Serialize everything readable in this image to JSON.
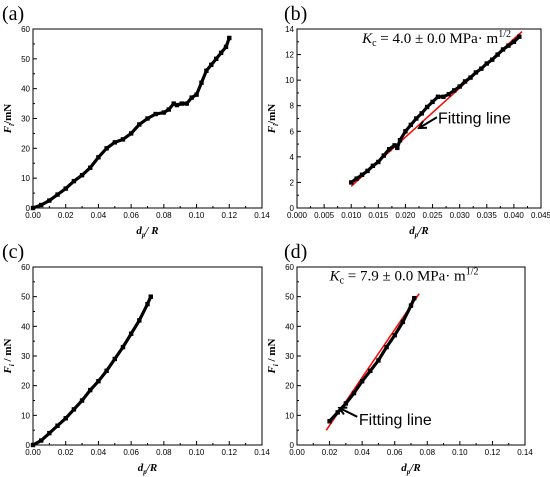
{
  "chart_data": [
    {
      "id": "a",
      "type": "scatter",
      "panel_label": "(a)",
      "xlabel": {
        "main": "d",
        "sub": "p",
        "tail": "/ R"
      },
      "ylabel": {
        "main": "F",
        "sub": "i",
        "tail": "/mN"
      },
      "xlim": [
        0,
        0.14
      ],
      "ylim": [
        0,
        60
      ],
      "xticks": [
        "0.00",
        "0.02",
        "0.04",
        "0.06",
        "0.08",
        "0.10",
        "0.12",
        "0.14"
      ],
      "yticks": [
        "0",
        "10",
        "20",
        "30",
        "40",
        "50",
        "60"
      ],
      "marker_color": "#000000",
      "series": [
        {
          "x": [
            0.0,
            0.005,
            0.01,
            0.015,
            0.02,
            0.025,
            0.03,
            0.035,
            0.04,
            0.045,
            0.05,
            0.055,
            0.06,
            0.065,
            0.07,
            0.075,
            0.08,
            0.083,
            0.086,
            0.088,
            0.091,
            0.094,
            0.097,
            0.1,
            0.103,
            0.106,
            0.109,
            0.112,
            0.115,
            0.118,
            0.12
          ],
          "y": [
            0.0,
            1.0,
            2.5,
            4.5,
            6.5,
            9.0,
            11.0,
            13.5,
            17.0,
            20.0,
            22.0,
            23.0,
            25.0,
            28.0,
            30.0,
            31.5,
            32.0,
            33.0,
            35.0,
            34.5,
            35.0,
            35.0,
            37.0,
            38.0,
            42.0,
            46.0,
            48.0,
            50.0,
            52.0,
            54.0,
            57.0
          ]
        }
      ]
    },
    {
      "id": "b",
      "type": "scatter",
      "panel_label": "(b)",
      "xlabel": {
        "main": "d",
        "sub": "p",
        "tail": "/R"
      },
      "ylabel": {
        "main": "F",
        "sub": "i",
        "tail": "/mN"
      },
      "xlim": [
        0,
        0.045
      ],
      "ylim": [
        0,
        14
      ],
      "xticks": [
        "0.000",
        "0.005",
        "0.010",
        "0.015",
        "0.020",
        "0.025",
        "0.030",
        "0.035",
        "0.040",
        "0.045"
      ],
      "yticks": [
        "0",
        "2",
        "4",
        "6",
        "8",
        "10",
        "12",
        "14"
      ],
      "marker_color": "#000000",
      "fit_color": "#ff0000",
      "fit_line": {
        "x": [
          0.01,
          0.0415
        ],
        "y": [
          1.7,
          13.8
        ]
      },
      "equation": {
        "lhs": "K",
        "lhs_sub": "c",
        "rhs": " = 4.0 ± 0.0 MPa· m",
        "sup": "1/2"
      },
      "annotation": "Fitting line",
      "series": [
        {
          "x": [
            0.01,
            0.011,
            0.012,
            0.013,
            0.014,
            0.015,
            0.016,
            0.017,
            0.018,
            0.0185,
            0.019,
            0.02,
            0.021,
            0.022,
            0.023,
            0.024,
            0.025,
            0.026,
            0.027,
            0.028,
            0.029,
            0.03,
            0.031,
            0.032,
            0.033,
            0.034,
            0.035,
            0.036,
            0.037,
            0.038,
            0.039,
            0.04,
            0.041
          ],
          "y": [
            2.0,
            2.3,
            2.6,
            2.9,
            3.3,
            3.6,
            4.1,
            4.6,
            4.9,
            4.7,
            5.3,
            6.0,
            6.5,
            7.0,
            7.4,
            7.9,
            8.3,
            8.7,
            8.7,
            8.9,
            9.2,
            9.5,
            9.9,
            10.2,
            10.6,
            10.9,
            11.3,
            11.6,
            12.0,
            12.4,
            12.7,
            13.0,
            13.4
          ]
        }
      ]
    },
    {
      "id": "c",
      "type": "scatter",
      "panel_label": "(c)",
      "xlabel": {
        "main": "d",
        "sub": "p",
        "tail": "/R"
      },
      "ylabel": {
        "main": "F",
        "sub": "i",
        "tail": " / mN"
      },
      "xlim": [
        0,
        0.14
      ],
      "ylim": [
        0,
        60
      ],
      "xticks": [
        "0.00",
        "0.02",
        "0.04",
        "0.06",
        "0.08",
        "0.10",
        "0.12",
        "0.14"
      ],
      "yticks": [
        "0",
        "10",
        "20",
        "30",
        "40",
        "50",
        "60"
      ],
      "marker_color": "#000000",
      "series": [
        {
          "x": [
            0.0,
            0.005,
            0.01,
            0.015,
            0.02,
            0.025,
            0.03,
            0.035,
            0.04,
            0.045,
            0.05,
            0.055,
            0.06,
            0.065,
            0.07,
            0.072
          ],
          "y": [
            0.0,
            1.5,
            4.0,
            6.5,
            9.0,
            12.0,
            15.0,
            18.5,
            21.5,
            25.0,
            29.0,
            33.0,
            37.5,
            42.0,
            47.5,
            50.0
          ]
        }
      ]
    },
    {
      "id": "d",
      "type": "scatter",
      "panel_label": "(d)",
      "xlabel": {
        "main": "d",
        "sub": "p",
        "tail": "/R"
      },
      "ylabel": {
        "main": "F",
        "sub": "i",
        "tail": " / mN"
      },
      "xlim": [
        0,
        0.14
      ],
      "ylim": [
        0,
        60
      ],
      "xticks": [
        "0.00",
        "0.02",
        "0.04",
        "0.06",
        "0.08",
        "0.10",
        "0.12",
        "0.14"
      ],
      "yticks": [
        "0",
        "10",
        "20",
        "30",
        "40",
        "50",
        "60"
      ],
      "marker_color": "#000000",
      "fit_color": "#ff0000",
      "fit_line": {
        "x": [
          0.018,
          0.075
        ],
        "y": [
          5.0,
          51.0
        ]
      },
      "equation": {
        "lhs": "K",
        "lhs_sub": "c",
        "rhs": " = 7.9 ± 0.0 MPa· m",
        "sup": "1/2"
      },
      "annotation": "Fitting line",
      "series": [
        {
          "x": [
            0.02,
            0.025,
            0.03,
            0.035,
            0.04,
            0.045,
            0.05,
            0.055,
            0.06,
            0.065,
            0.07,
            0.072
          ],
          "y": [
            8.0,
            11.0,
            14.0,
            17.5,
            21.5,
            25.0,
            28.5,
            33.0,
            37.0,
            41.5,
            47.0,
            49.5
          ]
        }
      ]
    }
  ]
}
